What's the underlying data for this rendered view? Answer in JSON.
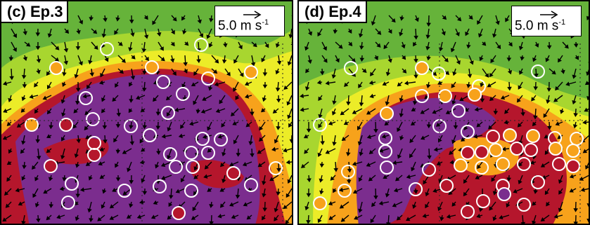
{
  "panels": [
    {
      "id": "c",
      "label": "(c) Ep.3",
      "ref_value": "5.0",
      "ref_unit": "m s",
      "ref_exp": "-1"
    },
    {
      "id": "d",
      "label": "(d) Ep.4",
      "ref_value": "5.0",
      "ref_unit": "m s",
      "ref_exp": "-1"
    }
  ],
  "colors": {
    "green": "#66b33a",
    "lime": "#a8d62f",
    "yellow": "#ecec28",
    "orange": "#f7a21b",
    "red": "#b5162c",
    "purple": "#7b2d8e",
    "light_purple": "#8a3c9c",
    "border": "#111111",
    "grid": "#222222",
    "circle_stroke": "#ffffff"
  }
}
